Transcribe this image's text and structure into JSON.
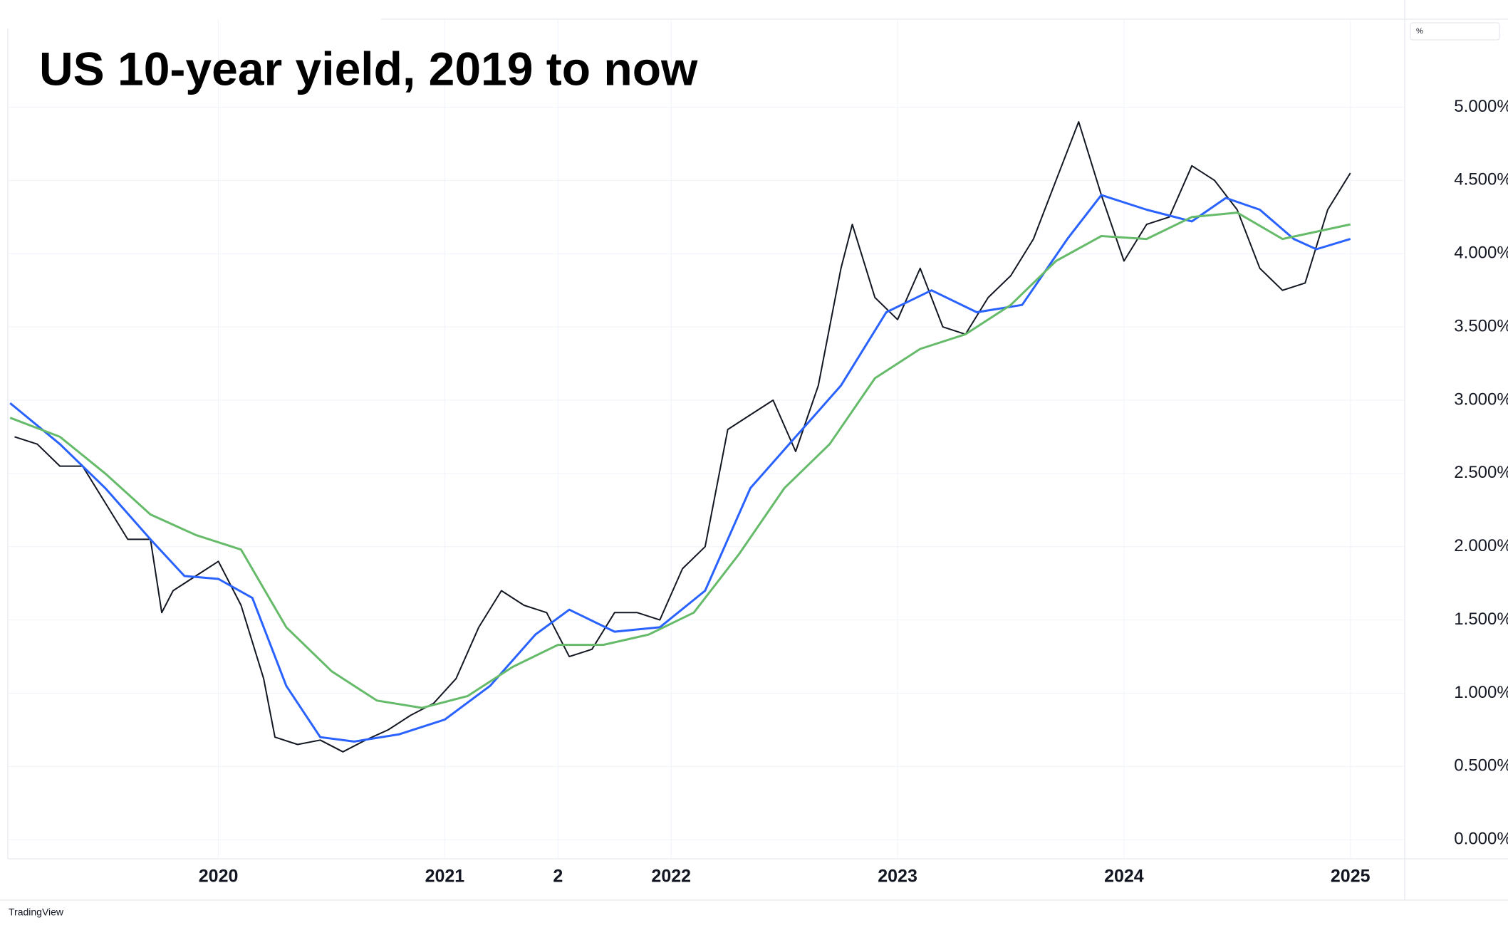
{
  "chart_data": {
    "type": "line",
    "title": "US 10-year yield, 2019 to now",
    "unit_label": "%",
    "watermark": "TradingView",
    "xlim": [
      2019.07,
      2025.24
    ],
    "xticks": [
      2020,
      2021,
      {
        "value": 2021.5,
        "label": "2"
      },
      2022,
      2023,
      2024,
      2025
    ],
    "ylim": [
      -0.13,
      5.6
    ],
    "yticks": [
      {
        "value": 0,
        "label": "0.000%"
      },
      {
        "value": 0.5,
        "label": "0.500%"
      },
      {
        "value": 1,
        "label": "1.000%"
      },
      {
        "value": 1.5,
        "label": "1.500%"
      },
      {
        "value": 2,
        "label": "2.000%"
      },
      {
        "value": 2.5,
        "label": "2.500%"
      },
      {
        "value": 3,
        "label": "3.000%"
      },
      {
        "value": 3.5,
        "label": "3.500%"
      },
      {
        "value": 4,
        "label": "4.000%"
      },
      {
        "value": 4.5,
        "label": "4.500%"
      },
      {
        "value": 5,
        "label": "5.000%"
      }
    ],
    "grid": true,
    "series": [
      {
        "color": "#131722",
        "width": 2,
        "x": [
          2019.1,
          2019.2,
          2019.3,
          2019.4,
          2019.5,
          2019.6,
          2019.7,
          2019.75,
          2019.8,
          2019.9,
          2020.0,
          2020.1,
          2020.2,
          2020.25,
          2020.35,
          2020.45,
          2020.55,
          2020.65,
          2020.75,
          2020.85,
          2020.95,
          2021.05,
          2021.15,
          2021.25,
          2021.35,
          2021.45,
          2021.55,
          2021.65,
          2021.75,
          2021.85,
          2021.95,
          2022.05,
          2022.15,
          2022.25,
          2022.35,
          2022.45,
          2022.55,
          2022.65,
          2022.75,
          2022.8,
          2022.9,
          2023.0,
          2023.1,
          2023.2,
          2023.3,
          2023.4,
          2023.5,
          2023.6,
          2023.7,
          2023.8,
          2023.9,
          2024.0,
          2024.1,
          2024.2,
          2024.3,
          2024.4,
          2024.5,
          2024.6,
          2024.7,
          2024.8,
          2024.9,
          2025.0
        ],
        "values": [
          2.75,
          2.7,
          2.55,
          2.55,
          2.3,
          2.05,
          2.05,
          1.55,
          1.7,
          1.8,
          1.9,
          1.6,
          1.1,
          0.7,
          0.65,
          0.68,
          0.6,
          0.68,
          0.75,
          0.85,
          0.93,
          1.1,
          1.45,
          1.7,
          1.6,
          1.55,
          1.25,
          1.3,
          1.55,
          1.55,
          1.5,
          1.85,
          2.0,
          2.8,
          2.9,
          3.0,
          2.65,
          3.1,
          3.9,
          4.2,
          3.7,
          3.55,
          3.9,
          3.5,
          3.45,
          3.7,
          3.85,
          4.1,
          4.5,
          4.9,
          4.4,
          3.95,
          4.2,
          4.25,
          4.6,
          4.5,
          4.3,
          3.9,
          3.75,
          3.8,
          4.3,
          4.55
        ]
      },
      {
        "color": "#2962ff",
        "width": 3,
        "x": [
          2019.08,
          2019.3,
          2019.5,
          2019.7,
          2019.85,
          2020.0,
          2020.15,
          2020.3,
          2020.45,
          2020.6,
          2020.8,
          2021.0,
          2021.2,
          2021.4,
          2021.55,
          2021.75,
          2021.95,
          2022.15,
          2022.35,
          2022.55,
          2022.75,
          2022.95,
          2023.15,
          2023.35,
          2023.55,
          2023.75,
          2023.9,
          2024.1,
          2024.3,
          2024.45,
          2024.6,
          2024.75,
          2024.85,
          2025.0
        ],
        "values": [
          2.98,
          2.7,
          2.4,
          2.05,
          1.8,
          1.78,
          1.65,
          1.05,
          0.7,
          0.67,
          0.72,
          0.82,
          1.05,
          1.4,
          1.57,
          1.42,
          1.45,
          1.7,
          2.4,
          2.75,
          3.1,
          3.6,
          3.75,
          3.6,
          3.65,
          4.1,
          4.4,
          4.3,
          4.22,
          4.38,
          4.3,
          4.1,
          4.03,
          4.1
        ]
      },
      {
        "color": "#66bb6a",
        "width": 3,
        "x": [
          2019.08,
          2019.3,
          2019.5,
          2019.7,
          2019.9,
          2020.1,
          2020.3,
          2020.5,
          2020.7,
          2020.9,
          2021.1,
          2021.3,
          2021.5,
          2021.7,
          2021.9,
          2022.1,
          2022.3,
          2022.5,
          2022.7,
          2022.9,
          2023.1,
          2023.3,
          2023.5,
          2023.7,
          2023.9,
          2024.1,
          2024.3,
          2024.5,
          2024.7,
          2024.85,
          2025.0
        ],
        "values": [
          2.88,
          2.75,
          2.5,
          2.22,
          2.08,
          1.98,
          1.45,
          1.15,
          0.95,
          0.9,
          0.98,
          1.18,
          1.33,
          1.33,
          1.4,
          1.55,
          1.95,
          2.4,
          2.7,
          3.15,
          3.35,
          3.45,
          3.65,
          3.95,
          4.12,
          4.1,
          4.25,
          4.28,
          4.1,
          4.15,
          4.2
        ]
      }
    ]
  }
}
